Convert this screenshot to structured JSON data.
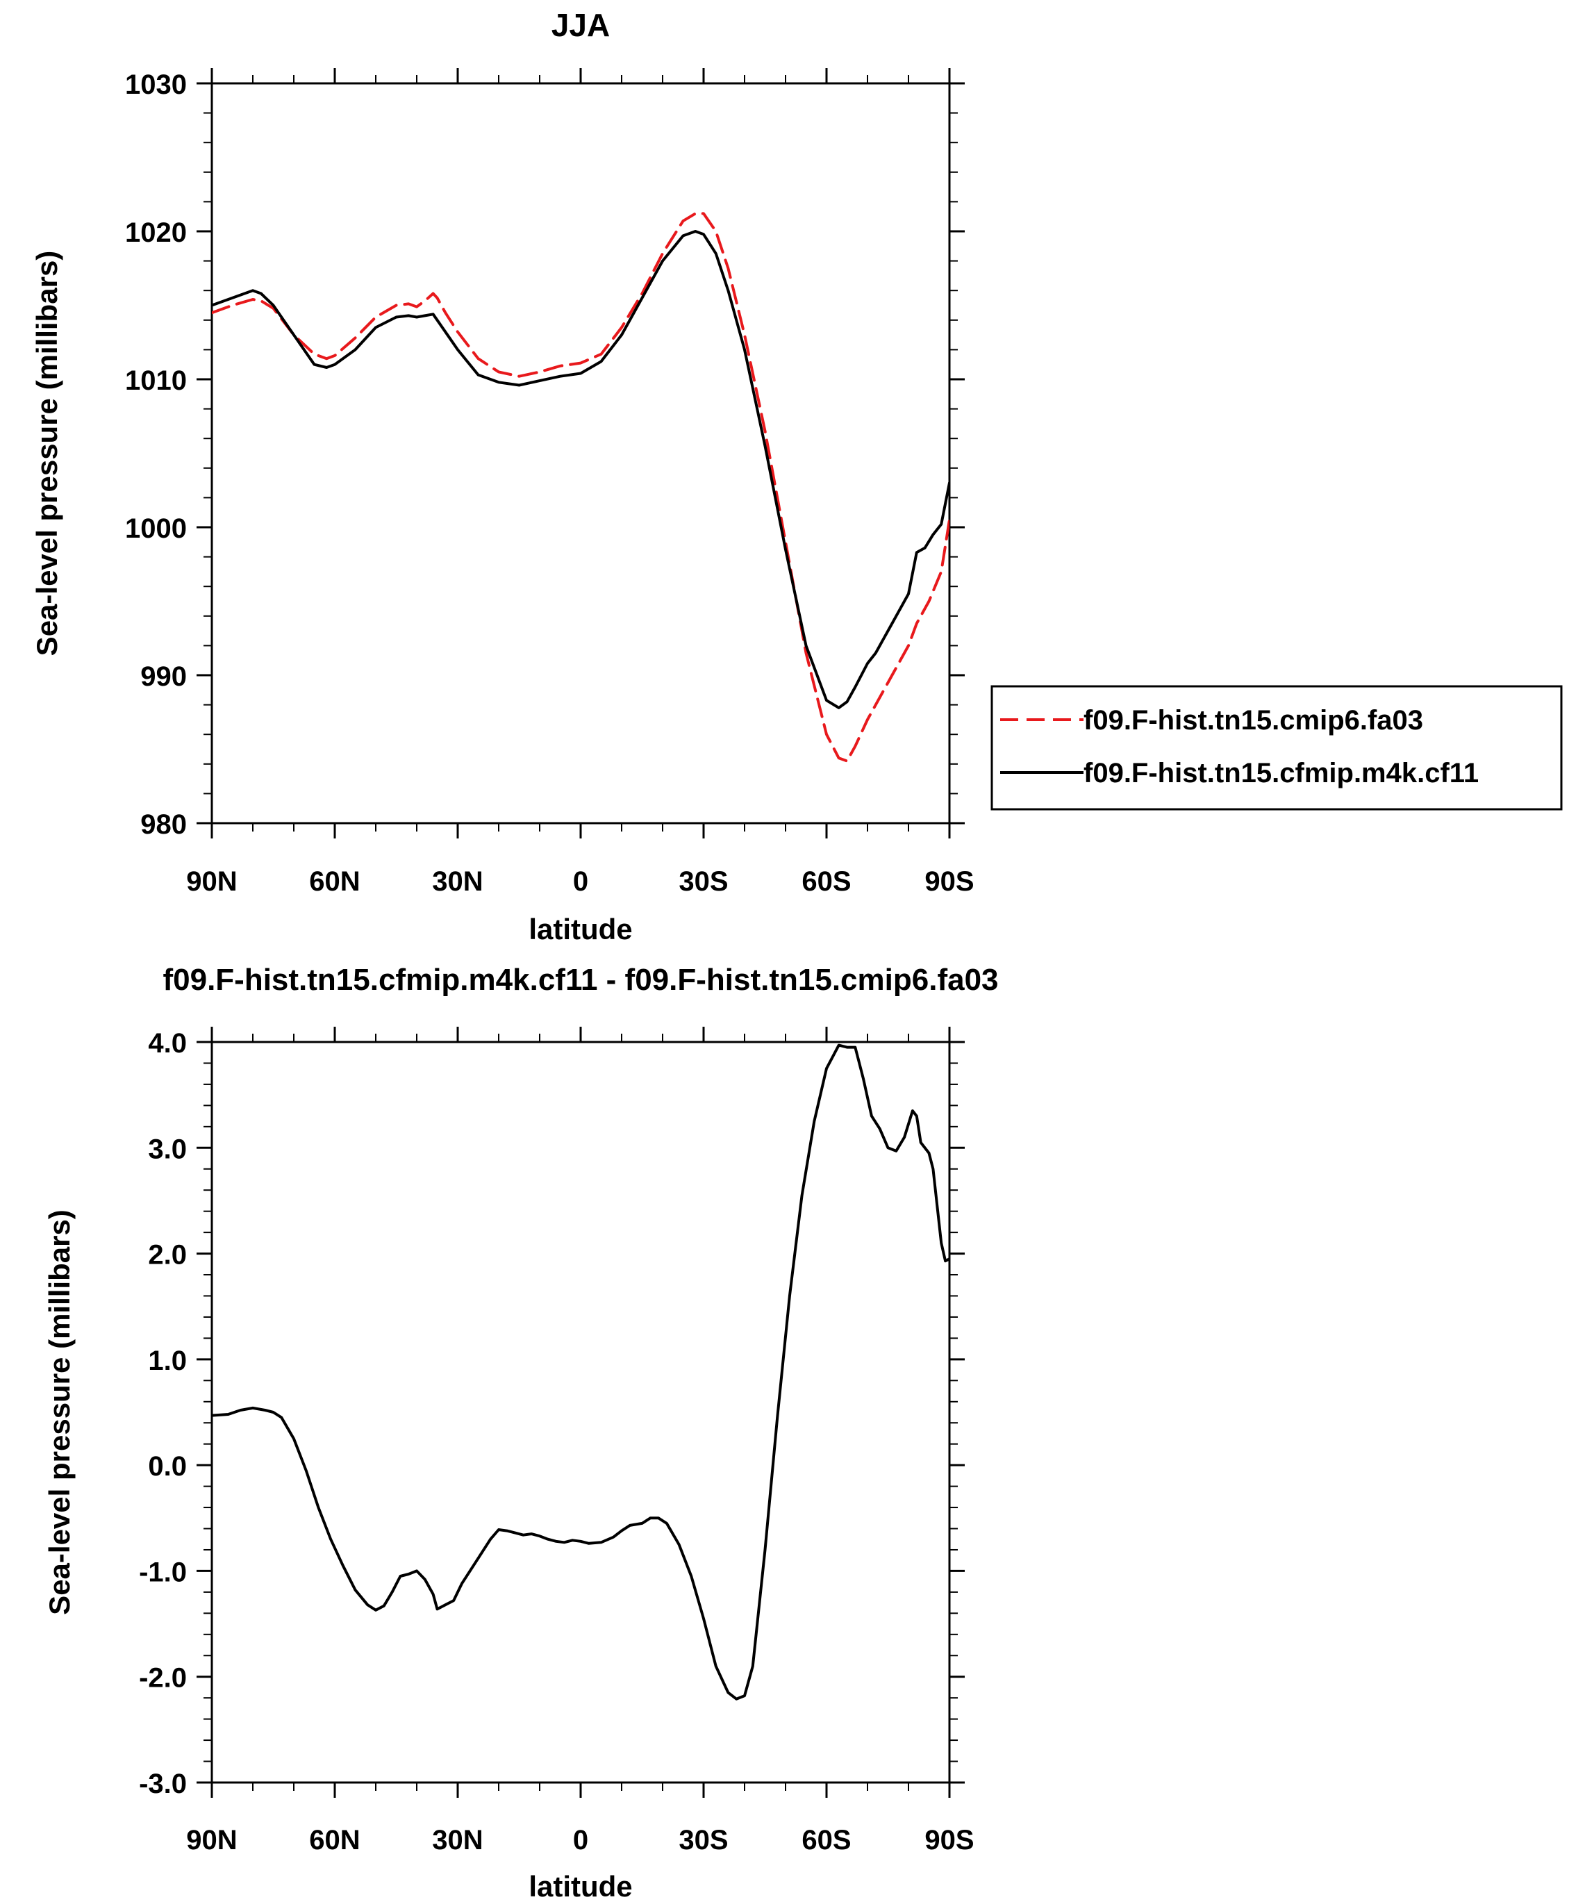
{
  "chart_data": [
    {
      "type": "line",
      "title": "JJA",
      "xlabel": "latitude",
      "ylabel": "Sea-level pressure (millibars)",
      "xlim": [
        90,
        -90
      ],
      "ylim": [
        980,
        1030
      ],
      "x_ticks": [
        90,
        60,
        30,
        0,
        -30,
        -60,
        -90
      ],
      "x_tick_labels": [
        "90N",
        "60N",
        "30N",
        "0",
        "30S",
        "60S",
        "90S"
      ],
      "y_ticks": [
        980,
        990,
        1000,
        1010,
        1020,
        1030
      ],
      "y_tick_labels": [
        "980",
        "990",
        "1000",
        "1010",
        "1020",
        "1030"
      ],
      "grid": false,
      "legend_position": "right",
      "series": [
        {
          "name": "f09.F-hist.tn15.cmip6.fa03",
          "color": "#e8191c",
          "dash": "dashed",
          "x": [
            90,
            85,
            80,
            78,
            75,
            70,
            65,
            62,
            60,
            55,
            50,
            45,
            42,
            40,
            38,
            36,
            35,
            33,
            30,
            25,
            20,
            15,
            10,
            5,
            0,
            -5,
            -10,
            -15,
            -20,
            -25,
            -28,
            -30,
            -33,
            -36,
            -40,
            -45,
            -50,
            -55,
            -60,
            -63,
            -65,
            -67,
            -70,
            -75,
            -80,
            -82,
            -85,
            -88,
            -90
          ],
          "y": [
            1014.5,
            1015.0,
            1015.4,
            1015.3,
            1014.8,
            1013.0,
            1011.7,
            1011.4,
            1011.6,
            1012.8,
            1014.2,
            1015.0,
            1015.1,
            1014.9,
            1015.3,
            1015.8,
            1015.5,
            1014.5,
            1013.2,
            1011.4,
            1010.5,
            1010.2,
            1010.5,
            1010.9,
            1011.1,
            1011.7,
            1013.5,
            1015.8,
            1018.5,
            1020.7,
            1021.2,
            1021.2,
            1020.0,
            1017.5,
            1013.0,
            1006.5,
            999.0,
            991.5,
            986.0,
            984.4,
            984.2,
            985.2,
            987.0,
            989.5,
            992.0,
            993.5,
            995.0,
            997.0,
            1000.5
          ]
        },
        {
          "name": "f09.F-hist.tn15.cfmip.m4k.cf11",
          "color": "#000000",
          "dash": "solid",
          "x": [
            90,
            85,
            80,
            78,
            75,
            70,
            65,
            62,
            60,
            55,
            50,
            45,
            42,
            40,
            38,
            36,
            35,
            33,
            30,
            25,
            20,
            15,
            10,
            5,
            0,
            -5,
            -10,
            -15,
            -20,
            -25,
            -28,
            -30,
            -33,
            -36,
            -40,
            -45,
            -50,
            -55,
            -60,
            -63,
            -65,
            -67,
            -70,
            -72,
            -75,
            -78,
            -80,
            -82,
            -84,
            -86,
            -88,
            -90
          ],
          "y": [
            1015.0,
            1015.5,
            1016.0,
            1015.8,
            1015.0,
            1013.0,
            1011.0,
            1010.8,
            1011.0,
            1012.0,
            1013.5,
            1014.2,
            1014.3,
            1014.2,
            1014.3,
            1014.4,
            1014.0,
            1013.2,
            1012.0,
            1010.3,
            1009.8,
            1009.6,
            1009.9,
            1010.2,
            1010.4,
            1011.2,
            1013.0,
            1015.5,
            1018.0,
            1019.7,
            1020.0,
            1019.8,
            1018.5,
            1016.0,
            1012.0,
            1005.5,
            998.5,
            992.0,
            988.3,
            987.8,
            988.2,
            989.2,
            990.8,
            991.5,
            993.0,
            994.5,
            995.5,
            998.3,
            998.6,
            999.5,
            1000.2,
            1003.0
          ]
        }
      ]
    },
    {
      "type": "line",
      "title": "f09.F-hist.tn15.cfmip.m4k.cf11 - f09.F-hist.tn15.cmip6.fa03",
      "xlabel": "latitude",
      "ylabel": "Sea-level pressure (millibars)",
      "xlim": [
        90,
        -90
      ],
      "ylim": [
        -3.0,
        4.0
      ],
      "x_ticks": [
        90,
        60,
        30,
        0,
        -30,
        -60,
        -90
      ],
      "x_tick_labels": [
        "90N",
        "60N",
        "30N",
        "0",
        "30S",
        "60S",
        "90S"
      ],
      "y_ticks": [
        -3.0,
        -2.0,
        -1.0,
        0.0,
        1.0,
        2.0,
        3.0,
        4.0
      ],
      "y_tick_labels": [
        "-3.0",
        "-2.0",
        "-1.0",
        "0.0",
        "1.0",
        "2.0",
        "3.0",
        "4.0"
      ],
      "grid": false,
      "series": [
        {
          "color": "#000000",
          "dash": "solid",
          "x": [
            90,
            86,
            83,
            80,
            77,
            75,
            73,
            70,
            67,
            64,
            61,
            58,
            55,
            52,
            50,
            48,
            46,
            44,
            42,
            40,
            38,
            36,
            35,
            33,
            31,
            29,
            27,
            25,
            22,
            20,
            18,
            16,
            14,
            12,
            10,
            8,
            6,
            4,
            2,
            0,
            -2,
            -5,
            -8,
            -10,
            -12,
            -15,
            -17,
            -19,
            -21,
            -24,
            -27,
            -30,
            -33,
            -36,
            -38,
            -40,
            -42,
            -45,
            -48,
            -51,
            -54,
            -57,
            -60,
            -63,
            -65,
            -67,
            -69,
            -71,
            -73,
            -75,
            -77,
            -79,
            -81,
            -82,
            -83,
            -85,
            -86,
            -87,
            -88,
            -89,
            -90
          ],
          "y": [
            0.47,
            0.48,
            0.52,
            0.54,
            0.52,
            0.5,
            0.45,
            0.25,
            -0.05,
            -0.4,
            -0.7,
            -0.95,
            -1.18,
            -1.32,
            -1.37,
            -1.33,
            -1.2,
            -1.05,
            -1.03,
            -1.0,
            -1.08,
            -1.22,
            -1.36,
            -1.32,
            -1.28,
            -1.12,
            -1.0,
            -0.88,
            -0.7,
            -0.61,
            -0.62,
            -0.64,
            -0.66,
            -0.65,
            -0.67,
            -0.7,
            -0.72,
            -0.73,
            -0.71,
            -0.72,
            -0.74,
            -0.73,
            -0.68,
            -0.62,
            -0.57,
            -0.55,
            -0.5,
            -0.5,
            -0.55,
            -0.75,
            -1.05,
            -1.45,
            -1.9,
            -2.15,
            -2.21,
            -2.18,
            -1.9,
            -0.8,
            0.45,
            1.6,
            2.55,
            3.25,
            3.75,
            3.97,
            3.95,
            3.95,
            3.65,
            3.3,
            3.18,
            3.0,
            2.97,
            3.1,
            3.35,
            3.3,
            3.05,
            2.95,
            2.8,
            2.45,
            2.1,
            1.93,
            1.95
          ]
        }
      ]
    }
  ]
}
